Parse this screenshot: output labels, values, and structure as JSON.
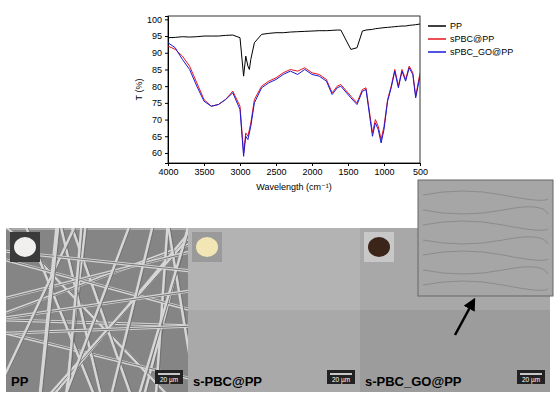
{
  "chart_data": {
    "type": "line",
    "x_label": "Wavelength (cm⁻¹)",
    "y_label": "T (%)",
    "xlim": [
      4000,
      500
    ],
    "ylim": [
      57,
      101
    ],
    "xticks": [
      4000,
      3500,
      3000,
      2500,
      2000,
      1500,
      1000,
      500
    ],
    "yticks": [
      60,
      65,
      70,
      75,
      80,
      85,
      90,
      95,
      100
    ],
    "legend": "right",
    "x": [
      4000,
      3900,
      3800,
      3700,
      3600,
      3500,
      3400,
      3300,
      3200,
      3100,
      3000,
      2950,
      2920,
      2890,
      2870,
      2850,
      2800,
      2700,
      2600,
      2500,
      2400,
      2300,
      2200,
      2100,
      2000,
      1900,
      1800,
      1720,
      1650,
      1600,
      1460,
      1375,
      1300,
      1250,
      1160,
      1120,
      1080,
      1040,
      1000,
      950,
      900,
      850,
      800,
      750,
      700,
      650,
      600,
      560,
      500
    ],
    "series": [
      {
        "name": "PP",
        "color": "#000000",
        "values": [
          94.5,
          94.6,
          94.8,
          94.7,
          94.8,
          95,
          95,
          95,
          95.2,
          95.3,
          94.5,
          83,
          89,
          86,
          85,
          88,
          93,
          95.5,
          95.8,
          96,
          96,
          96.2,
          96.3,
          96.4,
          96.5,
          96.6,
          96.6,
          96.7,
          96.8,
          96.8,
          91,
          91.5,
          96.5,
          96.8,
          97,
          97.2,
          97.3,
          97.4,
          97.5,
          97.6,
          97.7,
          97.8,
          97.9,
          98,
          98,
          98.2,
          98.3,
          98.4,
          98.6
        ]
      },
      {
        "name": "sPBC@PP",
        "color": "#e8141b",
        "values": [
          92,
          91,
          89,
          86,
          81,
          76,
          74,
          74.5,
          76,
          78.5,
          74,
          60,
          66,
          65,
          67,
          69,
          76,
          80,
          81.5,
          82.5,
          84,
          85,
          84.5,
          85.5,
          84,
          83.5,
          82,
          78,
          80,
          80.5,
          77,
          75,
          79,
          79.5,
          66,
          70,
          68,
          64,
          68,
          76,
          80,
          85,
          80,
          85,
          82,
          86,
          84,
          77,
          84
        ]
      },
      {
        "name": "sPBC_GO@PP",
        "color": "#1a1ad6",
        "values": [
          93,
          91.5,
          88,
          85,
          80,
          75.5,
          74,
          74.5,
          76,
          78,
          73,
          59,
          65,
          64,
          66,
          68,
          75,
          79.5,
          81,
          82,
          83.5,
          84.5,
          83.5,
          85,
          83.5,
          83,
          81.5,
          77.5,
          79.5,
          80,
          76.5,
          74.5,
          78.5,
          79,
          65,
          69,
          67,
          63,
          67,
          75.5,
          79.5,
          84.5,
          79.5,
          84.5,
          81.5,
          85.5,
          83.5,
          76.5,
          83
        ]
      }
    ]
  },
  "images": [
    {
      "label": "PP",
      "scale_bar": "20 µm"
    },
    {
      "label": "s-PBC@PP",
      "scale_bar": "20 µm"
    },
    {
      "label": "s-PBC_GO@PP",
      "scale_bar": "20 µm"
    }
  ]
}
